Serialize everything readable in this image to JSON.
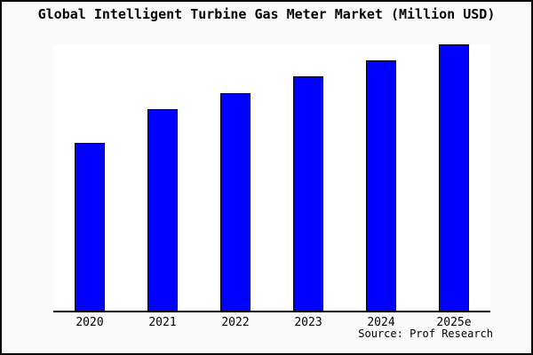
{
  "title": "Global Intelligent Turbine Gas Meter Market (Million USD)",
  "source_note": "Source: Prof Research",
  "colors": {
    "page_background": "#fafafa",
    "plot_background": "#ffffff",
    "bar_fill": "#0000ff",
    "bar_border": "#000000",
    "border": "#000000",
    "text": "#000000"
  },
  "chart_data": {
    "type": "bar",
    "title": "Global Intelligent Turbine Gas Meter Market (Million USD)",
    "categories": [
      "2020",
      "2021",
      "2022",
      "2023",
      "2024",
      "2025e"
    ],
    "values": [
      188,
      226,
      244,
      263,
      281,
      299
    ],
    "value_unit": "relative bar height; no y-axis scale shown in figure",
    "xlabel": "",
    "ylabel": "",
    "ylim": [
      0,
      300
    ],
    "grid": false,
    "legend": false,
    "y_axis_hidden": true,
    "annotations": [
      "Source: Prof Research"
    ]
  }
}
